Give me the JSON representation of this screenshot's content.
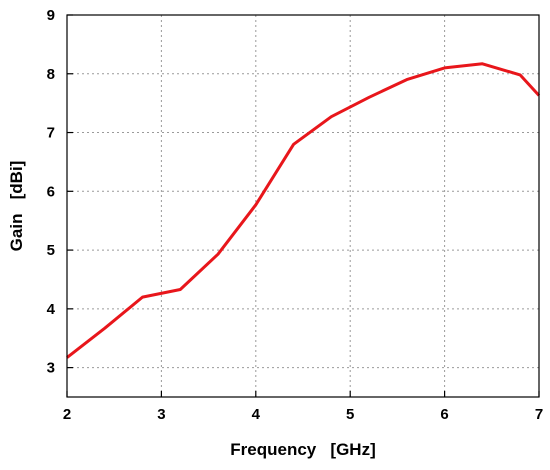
{
  "chart_data": {
    "type": "line",
    "title": "",
    "xlabel": "Frequency   [GHz]",
    "ylabel": "Gain   [dBi]",
    "xlim": [
      2,
      7
    ],
    "ylim": [
      2.5,
      9
    ],
    "x_ticks": [
      2,
      3,
      4,
      5,
      6,
      7
    ],
    "y_ticks": [
      3,
      4,
      5,
      6,
      7,
      8,
      9
    ],
    "grid": true,
    "series": [
      {
        "color": "#e8161b",
        "x": [
          2.0,
          2.4,
          2.8,
          3.2,
          3.6,
          4.0,
          4.4,
          4.8,
          5.2,
          5.6,
          6.0,
          6.4,
          6.8,
          7.0
        ],
        "y": [
          3.17,
          3.67,
          4.2,
          4.33,
          4.93,
          5.77,
          6.8,
          7.27,
          7.6,
          7.9,
          8.1,
          8.17,
          7.98,
          7.63
        ]
      }
    ]
  }
}
